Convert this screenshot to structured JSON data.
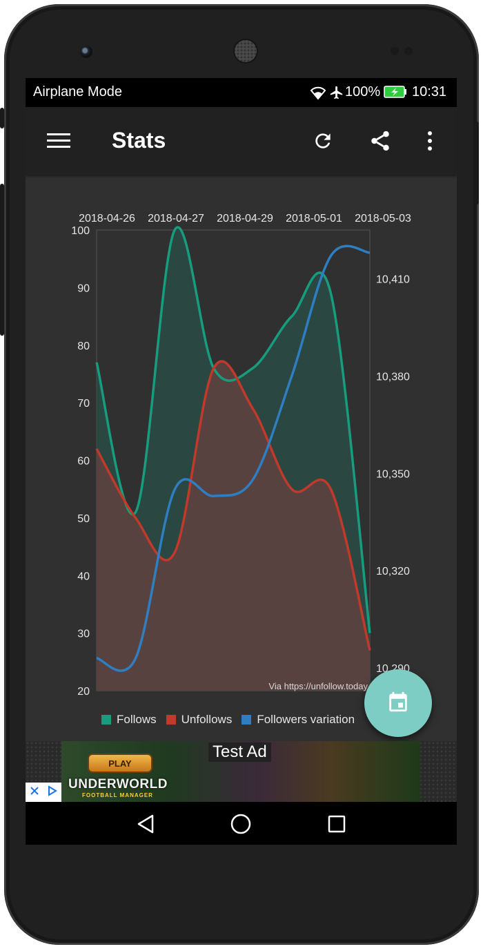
{
  "status_bar": {
    "network_text": "Airplane Mode",
    "battery_percent": "100%",
    "time": "10:31",
    "icons": [
      "wifi-icon",
      "airplane-icon",
      "battery-charging-icon"
    ]
  },
  "app_bar": {
    "title": "Stats",
    "actions": [
      "menu-icon",
      "refresh-icon",
      "share-icon",
      "more-vert-icon"
    ]
  },
  "chart_data": {
    "type": "line",
    "x_tick_labels": [
      "2018-04-26",
      "2018-04-27",
      "2018-04-29",
      "2018-05-01",
      "2018-05-03"
    ],
    "y_left_ticks": [
      20,
      30,
      40,
      50,
      60,
      70,
      80,
      90,
      100
    ],
    "y_right_ticks": [
      "10,290",
      "10,320",
      "10,350",
      "10,380",
      "10,410"
    ],
    "y_left_range": [
      20,
      100
    ],
    "y_right_range": [
      10283,
      10425
    ],
    "watermark": "Via https://unfollow.today",
    "series": [
      {
        "name": "Follows",
        "axis": "left",
        "color": "#179c7d",
        "fill": "#2a4a44",
        "values": [
          77,
          51,
          100,
          76,
          76,
          85,
          89,
          30
        ]
      },
      {
        "name": "Unfollows",
        "axis": "left",
        "color": "#c0392b",
        "fill": "#5c4240",
        "values": [
          62,
          50,
          44,
          76,
          69,
          55,
          55,
          27
        ]
      },
      {
        "name": "Followers variation",
        "axis": "right",
        "color": "#2e7ec1",
        "values": [
          10293,
          10293,
          10345,
          10343,
          10348,
          10380,
          10417,
          10418
        ]
      }
    ],
    "legend_position": "bottom",
    "grid": false
  },
  "fab": {
    "icon": "calendar-icon"
  },
  "ad": {
    "label": "Test Ad",
    "play_label": "PLAY",
    "brand": "UNDERWORLD",
    "subbrand": "FOOTBALL MANAGER",
    "choices_icons": [
      "close-icon",
      "adchoices-icon"
    ]
  },
  "nav_bar": {
    "buttons": [
      "back-icon",
      "home-icon",
      "recents-icon"
    ]
  }
}
